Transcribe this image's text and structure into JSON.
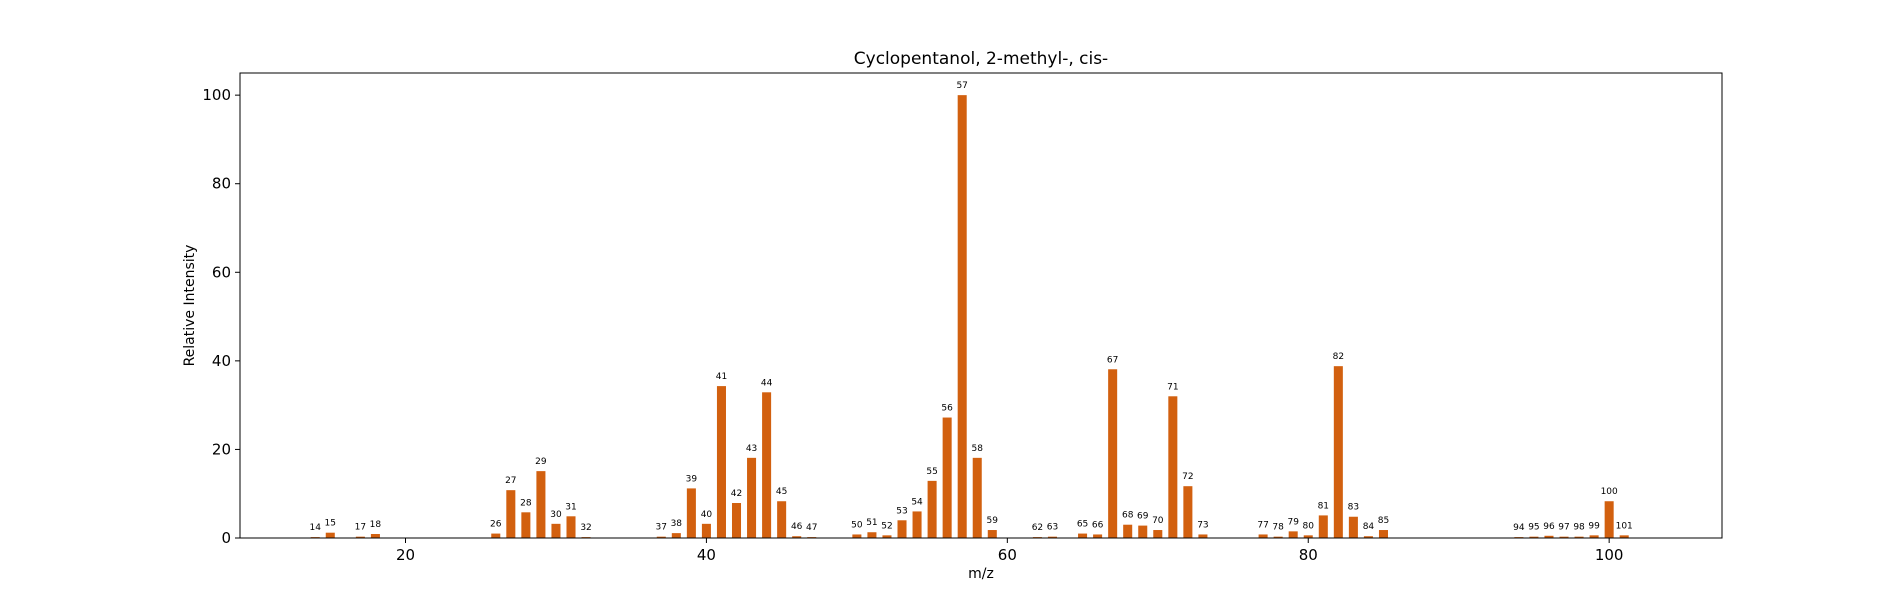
{
  "chart_data": {
    "type": "bar",
    "title": "Cyclopentanol, 2-methyl-, cis-",
    "xlabel": "m/z",
    "ylabel": "Relative Intensity",
    "xlim": [
      9,
      107.5
    ],
    "ylim": [
      0,
      105
    ],
    "xticks": [
      20,
      40,
      60,
      80,
      100
    ],
    "yticks": [
      0,
      20,
      40,
      60,
      80,
      100
    ],
    "bar_color": "#d2600f",
    "grid": false,
    "points": [
      {
        "x": 14,
        "y": 0.2
      },
      {
        "x": 15,
        "y": 1.2
      },
      {
        "x": 17,
        "y": 0.3
      },
      {
        "x": 18,
        "y": 0.9
      },
      {
        "x": 26,
        "y": 1.0
      },
      {
        "x": 27,
        "y": 10.8
      },
      {
        "x": 28,
        "y": 5.8
      },
      {
        "x": 29,
        "y": 15.1
      },
      {
        "x": 30,
        "y": 3.2
      },
      {
        "x": 31,
        "y": 4.9
      },
      {
        "x": 32,
        "y": 0.2
      },
      {
        "x": 37,
        "y": 0.3
      },
      {
        "x": 38,
        "y": 1.1
      },
      {
        "x": 39,
        "y": 11.2
      },
      {
        "x": 40,
        "y": 3.2
      },
      {
        "x": 41,
        "y": 34.3
      },
      {
        "x": 42,
        "y": 7.9
      },
      {
        "x": 43,
        "y": 18.1
      },
      {
        "x": 44,
        "y": 32.9
      },
      {
        "x": 45,
        "y": 8.3
      },
      {
        "x": 46,
        "y": 0.4
      },
      {
        "x": 47,
        "y": 0.2
      },
      {
        "x": 50,
        "y": 0.8
      },
      {
        "x": 51,
        "y": 1.3
      },
      {
        "x": 52,
        "y": 0.6
      },
      {
        "x": 53,
        "y": 4.0
      },
      {
        "x": 54,
        "y": 6.0
      },
      {
        "x": 55,
        "y": 12.9
      },
      {
        "x": 56,
        "y": 27.2
      },
      {
        "x": 57,
        "y": 100.0
      },
      {
        "x": 58,
        "y": 18.1
      },
      {
        "x": 59,
        "y": 1.8
      },
      {
        "x": 62,
        "y": 0.2
      },
      {
        "x": 63,
        "y": 0.3
      },
      {
        "x": 65,
        "y": 1.0
      },
      {
        "x": 66,
        "y": 0.8
      },
      {
        "x": 67,
        "y": 38.1
      },
      {
        "x": 68,
        "y": 3.0
      },
      {
        "x": 69,
        "y": 2.8
      },
      {
        "x": 70,
        "y": 1.8
      },
      {
        "x": 71,
        "y": 32.0
      },
      {
        "x": 72,
        "y": 11.7
      },
      {
        "x": 73,
        "y": 0.8
      },
      {
        "x": 77,
        "y": 0.8
      },
      {
        "x": 78,
        "y": 0.3
      },
      {
        "x": 79,
        "y": 1.5
      },
      {
        "x": 80,
        "y": 0.6
      },
      {
        "x": 81,
        "y": 5.1
      },
      {
        "x": 82,
        "y": 38.8
      },
      {
        "x": 83,
        "y": 4.8
      },
      {
        "x": 84,
        "y": 0.4
      },
      {
        "x": 85,
        "y": 1.8
      },
      {
        "x": 94,
        "y": 0.2
      },
      {
        "x": 95,
        "y": 0.3
      },
      {
        "x": 96,
        "y": 0.5
      },
      {
        "x": 97,
        "y": 0.3
      },
      {
        "x": 98,
        "y": 0.3
      },
      {
        "x": 99,
        "y": 0.6
      },
      {
        "x": 100,
        "y": 8.3
      },
      {
        "x": 101,
        "y": 0.6
      }
    ]
  }
}
